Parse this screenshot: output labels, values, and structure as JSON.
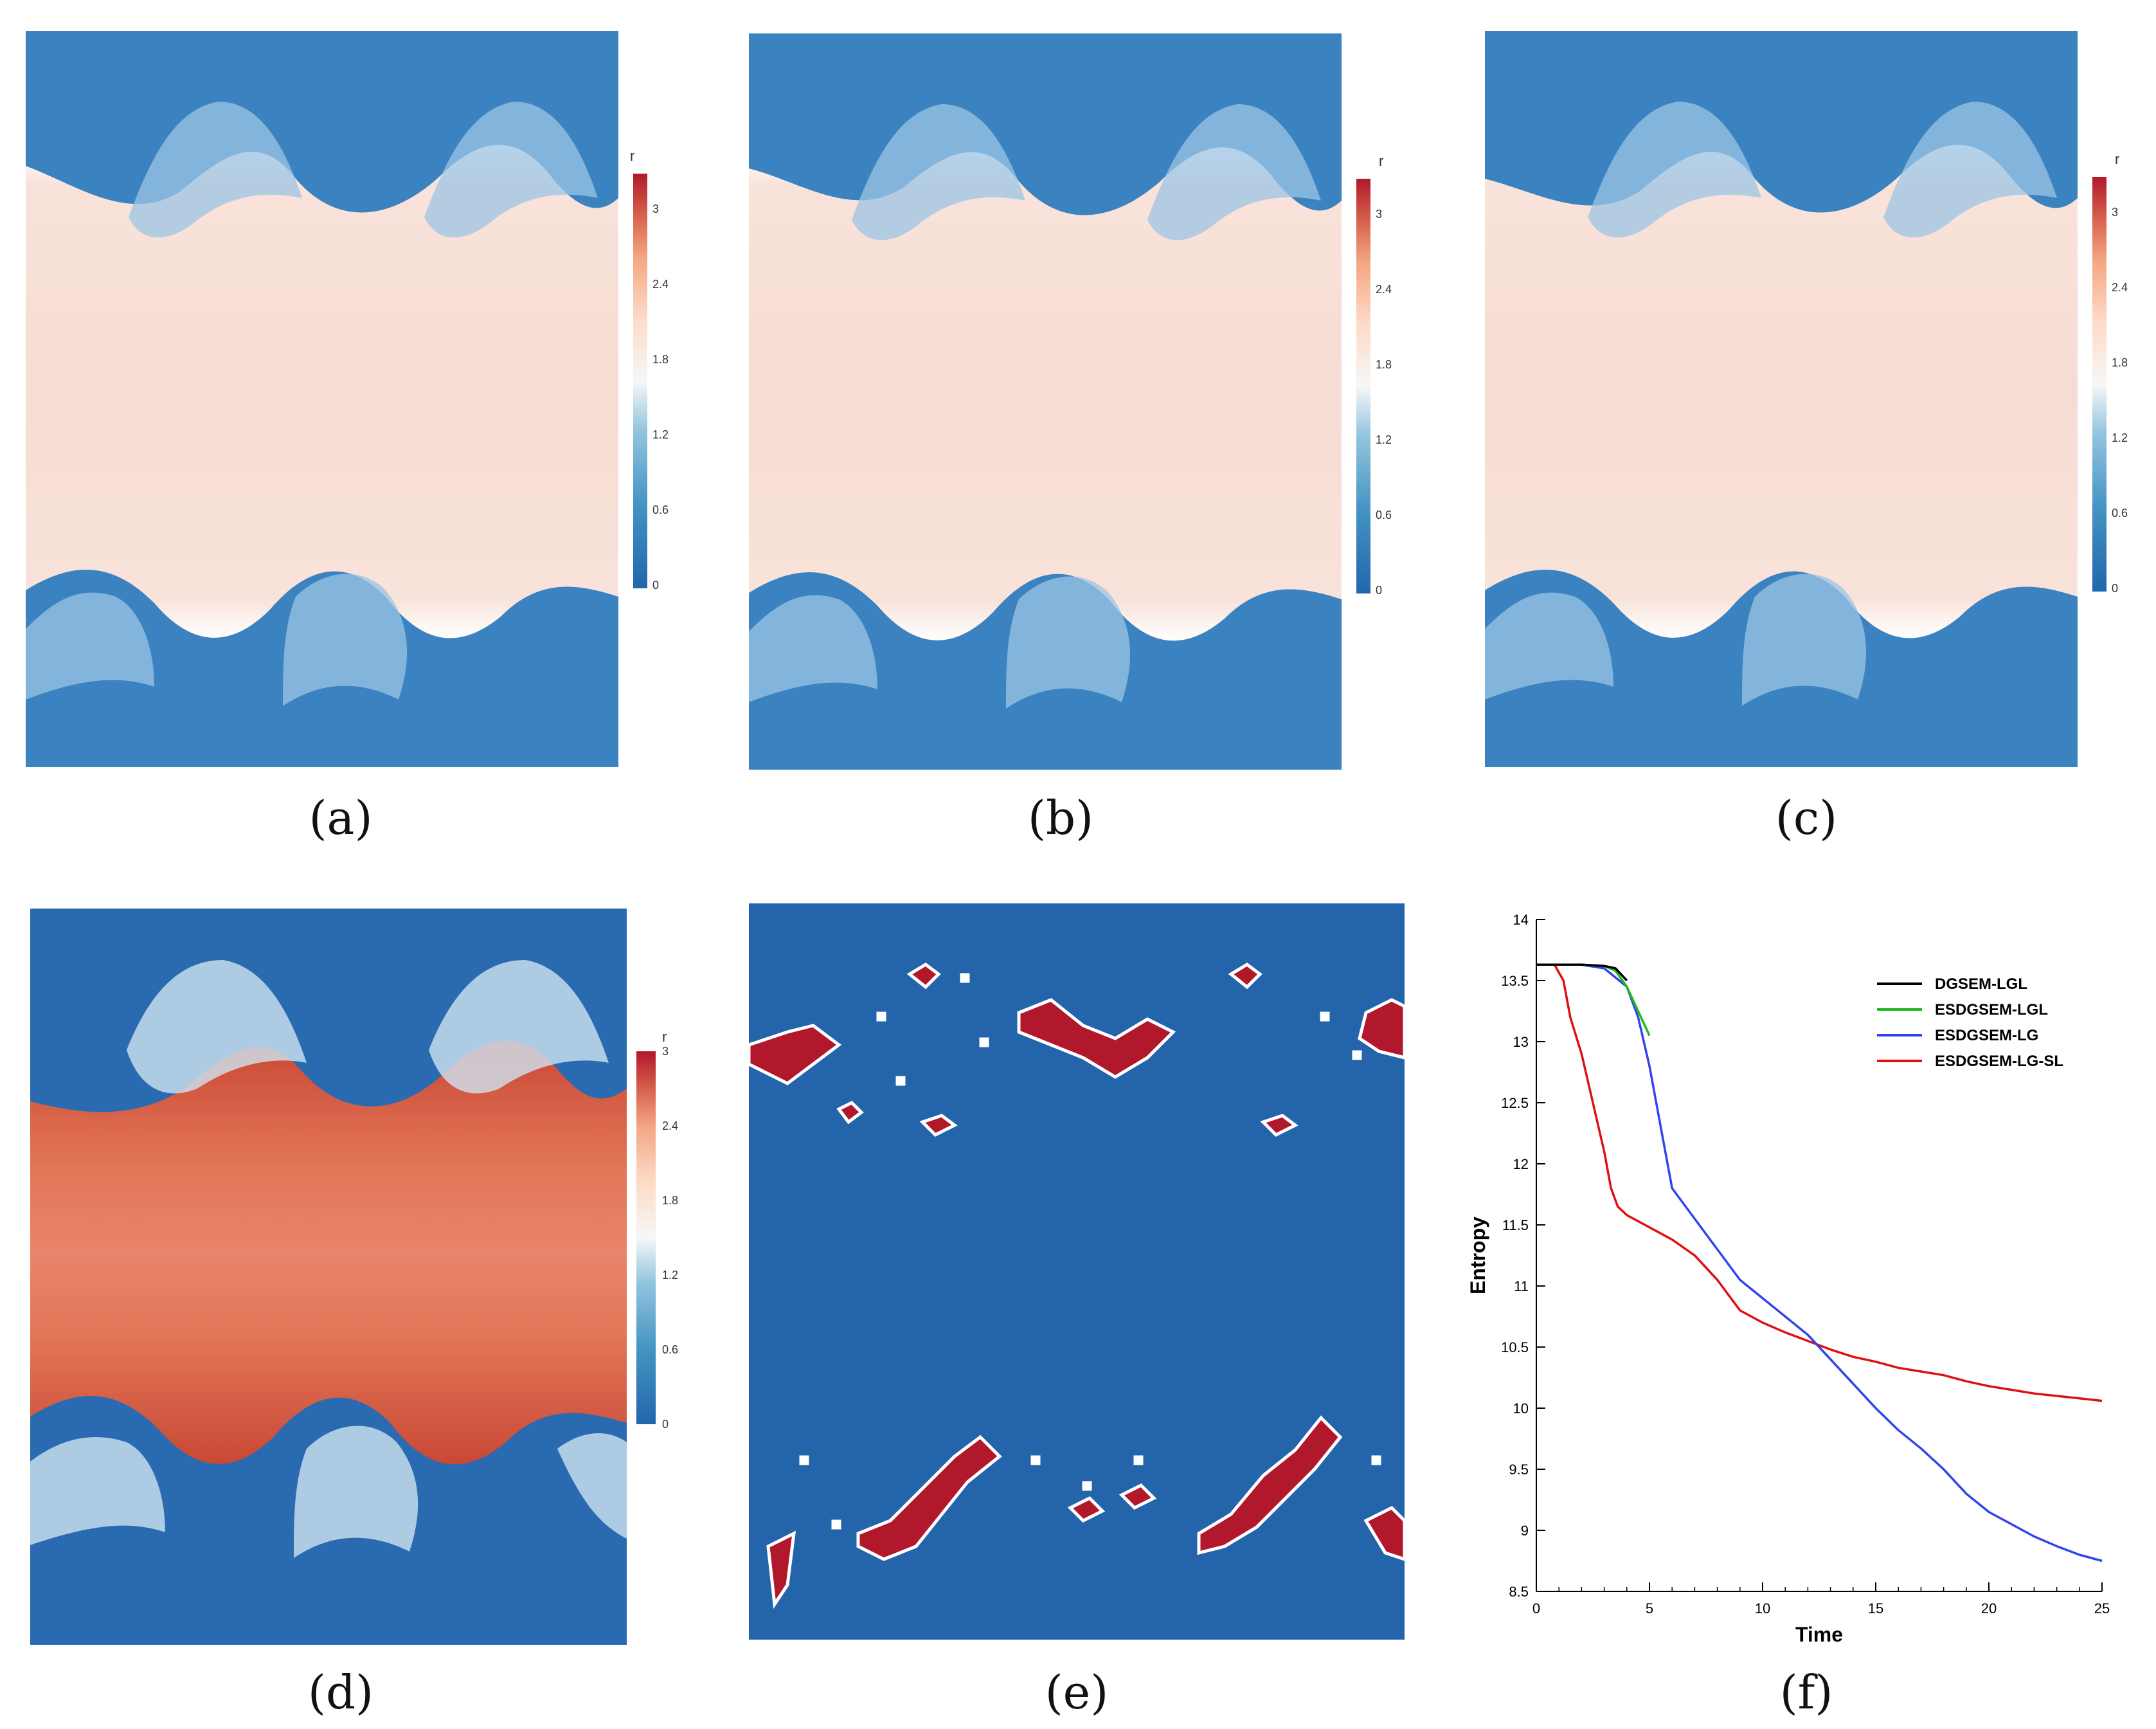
{
  "figure": {
    "captions": [
      "(a)",
      "(b)",
      "(c)",
      "(d)",
      "(e)",
      "(f)"
    ],
    "colorbar": {
      "label": "r",
      "ticks_abc": [
        "3",
        "2.4",
        "1.8",
        "1.2",
        "0.6",
        "0"
      ],
      "ticks_d": [
        "3",
        "2.4",
        "1.8",
        "1.2",
        "0.6",
        "0"
      ]
    },
    "colors": {
      "low": "#2b6cb0",
      "high": "#b2182b",
      "mid": "#f7f7f7",
      "dense": "#f6dcd2",
      "dense_d": "#e27658",
      "troubled": "#b2182b",
      "background_e": "#2464aa"
    }
  },
  "chart_data": {
    "type": "line",
    "title": "",
    "xlabel": "Time",
    "ylabel": "Entropy",
    "xlim": [
      0,
      25
    ],
    "ylim": [
      8.5,
      14
    ],
    "xticks": [
      "0",
      "5",
      "10",
      "15",
      "20",
      "25"
    ],
    "yticks": [
      "8.5",
      "9",
      "9.5",
      "10",
      "10.5",
      "11",
      "11.5",
      "12",
      "12.5",
      "13",
      "13.5",
      "14"
    ],
    "legend_position": "top-right",
    "series": [
      {
        "name": "DGSEM-LGL",
        "color": "#000000",
        "x": [
          0,
          1,
          2,
          3,
          3.5,
          4
        ],
        "y": [
          13.63,
          13.63,
          13.63,
          13.62,
          13.6,
          13.5
        ]
      },
      {
        "name": "ESDGSEM-LGL",
        "color": "#22bb22",
        "x": [
          0,
          1,
          2,
          3,
          3.5,
          4,
          4.5,
          5
        ],
        "y": [
          13.63,
          13.63,
          13.63,
          13.62,
          13.58,
          13.45,
          13.25,
          13.05
        ]
      },
      {
        "name": "ESDGSEM-LG",
        "color": "#3344ee",
        "x": [
          0,
          1,
          2,
          3,
          4,
          4.5,
          5,
          5.5,
          6,
          7,
          8,
          9,
          10,
          11,
          12,
          13,
          14,
          15,
          16,
          17,
          18,
          19,
          20,
          21,
          22,
          23,
          24,
          25
        ],
        "y": [
          13.63,
          13.63,
          13.63,
          13.6,
          13.45,
          13.2,
          12.8,
          12.3,
          11.8,
          11.55,
          11.3,
          11.05,
          10.9,
          10.75,
          10.6,
          10.4,
          10.2,
          10.0,
          9.82,
          9.67,
          9.5,
          9.3,
          9.15,
          9.05,
          8.95,
          8.87,
          8.8,
          8.75
        ]
      },
      {
        "name": "ESDGSEM-LG-SL",
        "color": "#dd1111",
        "x": [
          0,
          0.8,
          1.2,
          1.5,
          2,
          2.5,
          3,
          3.3,
          3.6,
          4,
          5,
          6,
          7,
          8,
          9,
          10,
          11,
          12,
          13,
          14,
          15,
          16,
          17,
          18,
          19,
          20,
          21,
          22,
          23,
          24,
          25
        ],
        "y": [
          13.63,
          13.63,
          13.5,
          13.2,
          12.9,
          12.5,
          12.1,
          11.8,
          11.65,
          11.58,
          11.48,
          11.38,
          11.25,
          11.05,
          10.8,
          10.7,
          10.62,
          10.55,
          10.48,
          10.42,
          10.38,
          10.33,
          10.3,
          10.27,
          10.22,
          10.18,
          10.15,
          10.12,
          10.1,
          10.08,
          10.06
        ]
      }
    ]
  }
}
